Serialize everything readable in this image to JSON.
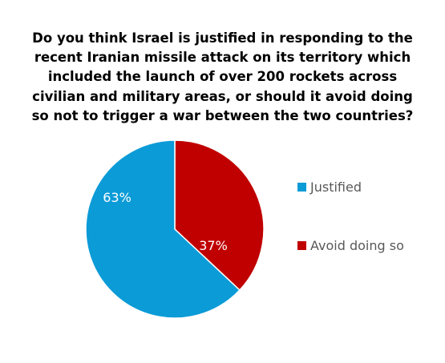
{
  "chart_data": {
    "type": "pie",
    "title_lines": [
      "Do you think Israel is justified in responding to the",
      "recent Iranian missile attack on its territory which",
      "included the launch of over 200 rockets across",
      "civilian and military areas, or should it avoid doing",
      "so not to trigger a war between the two countries?"
    ],
    "slices": [
      {
        "label": "Justified",
        "value": 63,
        "display": "63%",
        "color": "#0B9BD7"
      },
      {
        "label": "Avoid doing so",
        "value": 37,
        "display": "37%",
        "color": "#C00000"
      }
    ],
    "legend_position": "right"
  }
}
